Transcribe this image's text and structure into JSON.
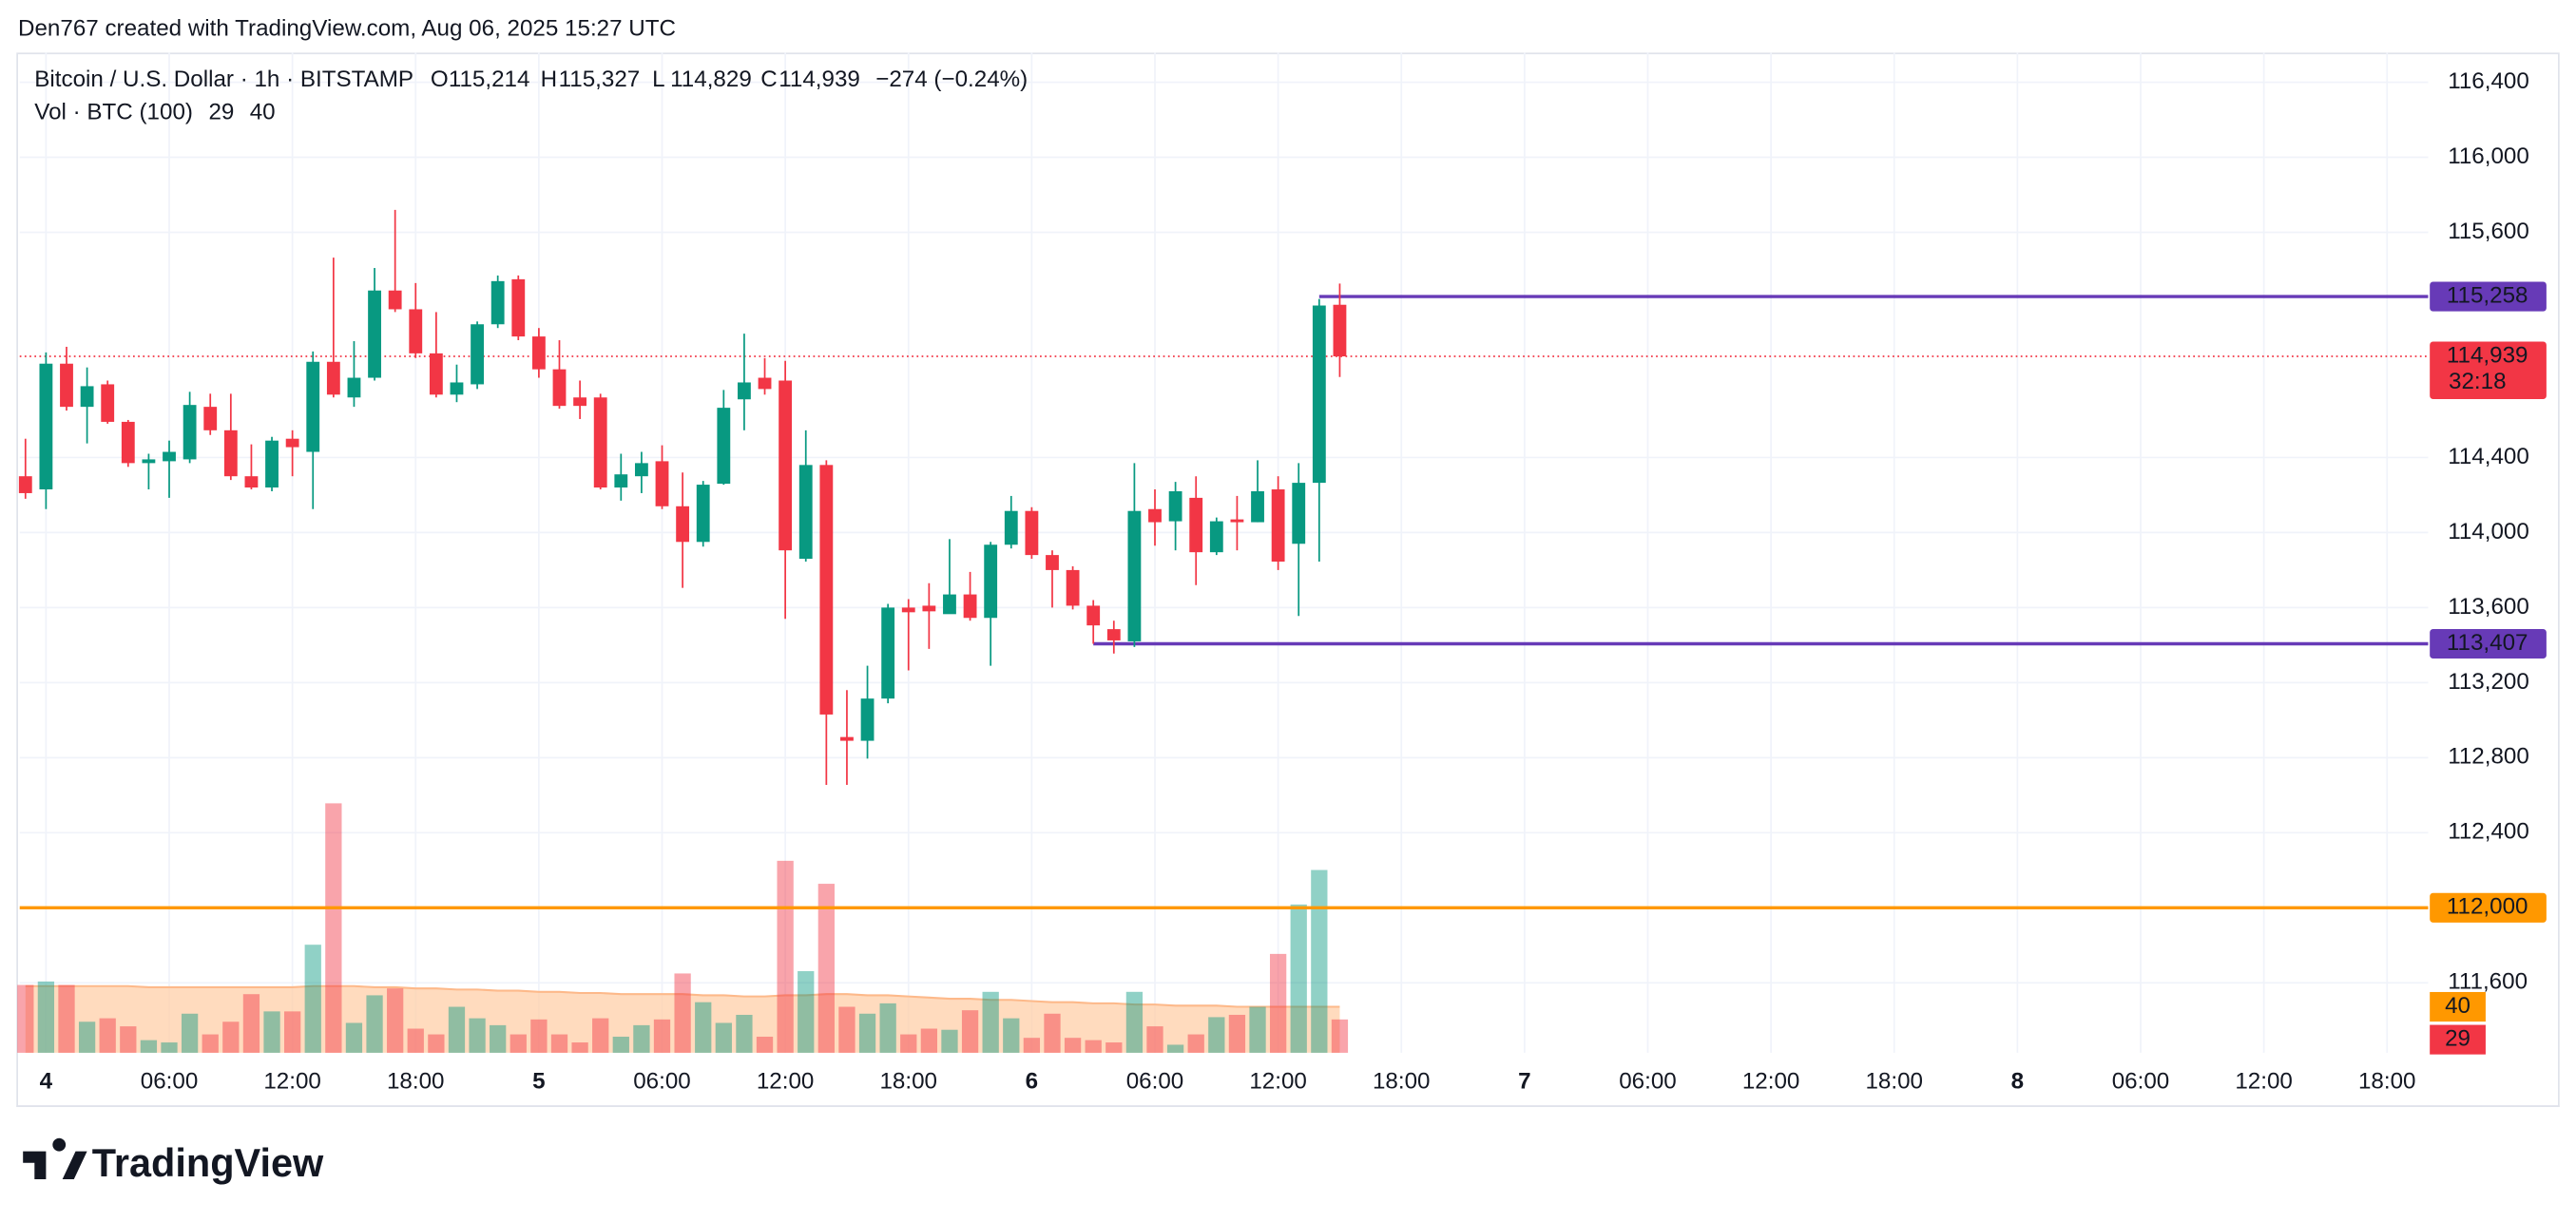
{
  "header": {
    "attribution": "Den767 created with TradingView.com, Aug 06, 2025 15:27 UTC"
  },
  "chart_data": {
    "type": "candlestick",
    "title": "Bitcoin / U.S. Dollar · 1h · BITSTAMP",
    "legend": [
      {
        "key": "O",
        "value": "115,214"
      },
      {
        "key": "H",
        "value": "115,327"
      },
      {
        "key": "L",
        "value": "114,829"
      },
      {
        "key": "C",
        "value": "114,939"
      }
    ],
    "change": "−274 (−0.24%)",
    "up_color": "#089981",
    "down_color": "#f23645",
    "x": [
      -1,
      0,
      1,
      2,
      3,
      4,
      5,
      6,
      7,
      8,
      9,
      10,
      11,
      12,
      13,
      14,
      15,
      16,
      17,
      18,
      19,
      20,
      21,
      22,
      23,
      24,
      25,
      26,
      27,
      28,
      29,
      30,
      31,
      32,
      33,
      34,
      35,
      36,
      37,
      38,
      39,
      40,
      41,
      42,
      43,
      44,
      45,
      46,
      47,
      48,
      49,
      50,
      51,
      52,
      53,
      54,
      55,
      56,
      57,
      58,
      59,
      60,
      61,
      62,
      63
    ],
    "open": [
      114300,
      114230,
      114900,
      114670,
      114790,
      114590,
      114370,
      114380,
      114390,
      114670,
      114545,
      114300,
      114240,
      114500,
      114430,
      114910,
      114720,
      114825,
      115290,
      115190,
      114955,
      114735,
      114790,
      115110,
      115350,
      115045,
      114870,
      114720,
      114720,
      114240,
      114300,
      114380,
      114140,
      113950,
      114260,
      114710,
      114825,
      114810,
      113860,
      114360,
      112910,
      112890,
      113115,
      113600,
      113610,
      113565,
      113670,
      113545,
      113935,
      114115,
      113880,
      113800,
      113610,
      113485,
      113420,
      114125,
      114060,
      114185,
      113895,
      114070,
      114055,
      114230,
      113940,
      114265,
      115214
    ],
    "high": [
      114500,
      114960,
      114990,
      114880,
      114810,
      114600,
      114420,
      114490,
      114750,
      114740,
      114740,
      114470,
      114510,
      114545,
      114965,
      115465,
      115020,
      115410,
      115720,
      115330,
      115175,
      114895,
      115125,
      115370,
      115370,
      115090,
      115025,
      114810,
      114740,
      114420,
      114430,
      114465,
      114320,
      114275,
      114760,
      115060,
      114930,
      114915,
      114545,
      114385,
      113160,
      113290,
      113620,
      113645,
      113730,
      113965,
      113790,
      113950,
      114195,
      114135,
      113905,
      113820,
      113640,
      113530,
      114370,
      114230,
      114270,
      114300,
      114080,
      114195,
      114385,
      114300,
      114370,
      115245,
      115327
    ],
    "low": [
      114180,
      114125,
      114650,
      114475,
      114580,
      114350,
      114230,
      114185,
      114370,
      114520,
      114280,
      114230,
      114220,
      114300,
      114125,
      114720,
      114670,
      114810,
      115175,
      114930,
      114720,
      114695,
      114765,
      115090,
      115025,
      114825,
      114660,
      114605,
      114230,
      114170,
      114210,
      114125,
      113705,
      113925,
      114255,
      114545,
      114735,
      113540,
      113845,
      112655,
      112655,
      112795,
      113090,
      113265,
      113380,
      113575,
      113530,
      113290,
      113915,
      113860,
      113600,
      113590,
      113407,
      113355,
      113390,
      113930,
      113905,
      113720,
      113880,
      113905,
      114055,
      113800,
      113555,
      113845,
      114829
    ],
    "close": [
      114210,
      114900,
      114670,
      114780,
      114590,
      114370,
      114390,
      114430,
      114680,
      114545,
      114300,
      114240,
      114490,
      114455,
      114910,
      114735,
      114825,
      115290,
      115190,
      114955,
      114735,
      114800,
      115110,
      115340,
      115045,
      114870,
      114675,
      114675,
      114240,
      114310,
      114370,
      114140,
      113950,
      114255,
      114665,
      114800,
      114765,
      113905,
      114360,
      113030,
      112890,
      113115,
      113600,
      113575,
      113580,
      113670,
      113545,
      113935,
      114115,
      113880,
      113800,
      113610,
      113505,
      113425,
      114115,
      114055,
      114220,
      113895,
      114060,
      114055,
      114220,
      113845,
      114265,
      115210,
      114939
    ],
    "xlim": [
      -1.28,
      116
    ],
    "xticks": [
      {
        "value": 0,
        "label": "4"
      },
      {
        "value": 6,
        "label": "06:00"
      },
      {
        "value": 12,
        "label": "12:00"
      },
      {
        "value": 18,
        "label": "18:00"
      },
      {
        "value": 24,
        "label": "5"
      },
      {
        "value": 30,
        "label": "06:00"
      },
      {
        "value": 36,
        "label": "12:00"
      },
      {
        "value": 42,
        "label": "18:00"
      },
      {
        "value": 48,
        "label": "6"
      },
      {
        "value": 54,
        "label": "06:00"
      },
      {
        "value": 60,
        "label": "12:00"
      },
      {
        "value": 66,
        "label": "18:00"
      },
      {
        "value": 72,
        "label": "7"
      },
      {
        "value": 78,
        "label": "06:00"
      },
      {
        "value": 84,
        "label": "12:00"
      },
      {
        "value": 90,
        "label": "18:00"
      },
      {
        "value": 96,
        "label": "8"
      },
      {
        "value": 102,
        "label": "06:00"
      },
      {
        "value": 108,
        "label": "12:00"
      },
      {
        "value": 114,
        "label": "18:00"
      }
    ],
    "ylim": [
      111227,
      116558
    ],
    "yticks": [
      {
        "value": 116400,
        "label": "116,400"
      },
      {
        "value": 116000,
        "label": "116,000"
      },
      {
        "value": 115600,
        "label": "115,600"
      },
      {
        "value": 114400,
        "label": "114,400"
      },
      {
        "value": 114000,
        "label": "114,000"
      },
      {
        "value": 113600,
        "label": "113,600"
      },
      {
        "value": 113200,
        "label": "113,200"
      },
      {
        "value": 112800,
        "label": "112,800"
      },
      {
        "value": 112400,
        "label": "112,400"
      },
      {
        "value": 111600,
        "label": "111,600"
      }
    ],
    "grid": true,
    "levels": [
      {
        "value": 115258,
        "label": "115,258",
        "color": "#673ab7",
        "start_x": 62
      },
      {
        "value": 113407,
        "label": "113,407",
        "color": "#673ab7",
        "start_x": 51
      },
      {
        "value": 112000,
        "label": "112,000",
        "color": "#ff9800",
        "start_x": -1.28
      }
    ],
    "last_price": {
      "value": 114939,
      "label": "114,939",
      "countdown": "32:18"
    },
    "volume": {
      "name": "Vol · BTC (100)",
      "ylim": [
        0,
        870
      ],
      "ma_color": "#ff9800",
      "values": [
        59,
        62,
        59,
        27,
        30,
        23,
        11,
        9,
        34,
        16,
        27,
        51,
        36,
        36,
        94,
        217,
        26,
        50,
        56,
        21,
        16,
        40,
        30,
        24,
        16,
        29,
        16,
        9,
        30,
        14,
        24,
        29,
        69,
        44,
        26,
        33,
        14,
        167,
        71,
        147,
        40,
        34,
        43,
        16,
        21,
        20,
        37,
        53,
        30,
        13,
        34,
        13,
        11,
        9,
        53,
        23,
        7,
        16,
        31,
        33,
        40,
        86,
        129,
        159,
        29
      ],
      "ma_values": [
        58,
        58,
        58,
        58,
        58,
        58,
        57,
        57,
        57,
        57,
        57,
        57,
        57,
        57,
        58,
        58,
        58,
        57,
        57,
        56,
        56,
        55,
        55,
        54,
        54,
        53,
        53,
        52,
        52,
        51,
        51,
        51,
        51,
        50,
        50,
        49,
        49,
        50,
        50,
        51,
        51,
        50,
        50,
        49,
        48,
        47,
        47,
        46,
        46,
        45,
        44,
        44,
        43,
        43,
        42,
        42,
        41,
        41,
        41,
        40,
        40,
        40,
        40,
        40,
        40
      ]
    }
  },
  "footer": {
    "logo": "TradingView"
  }
}
